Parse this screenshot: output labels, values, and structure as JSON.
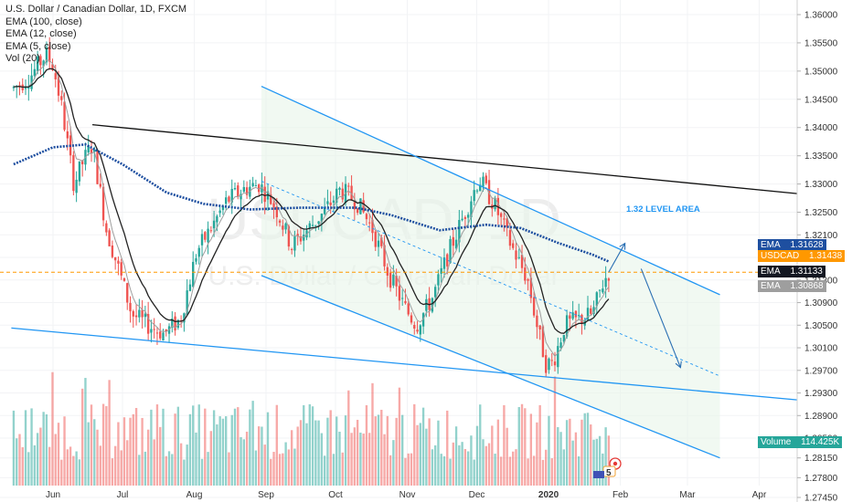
{
  "legend": {
    "symbol": "U.S. Dollar / Canadian Dollar, 1D, FXCM",
    "studies": [
      "EMA (100, close)",
      "EMA (12, close)",
      "EMA (5, close)",
      "Vol (20)"
    ]
  },
  "watermark": {
    "ticker": "USDCAD, 1D",
    "name": "U.S. Dollar / Canadian Dollar"
  },
  "annotation": "1.32 LEVEL AREA",
  "colors": {
    "up": "#26a69a",
    "down": "#ef5350",
    "ema100": "#1e4fa0",
    "ema12": "#222222",
    "ema5": "#9e9e9e",
    "channel": "#2196f3",
    "price_line": "#ff9800",
    "resistance": "#111111"
  },
  "badges": [
    {
      "label": "EMA",
      "value": "1.31628",
      "bg": "#1e4fa0",
      "fg": "#ffffff"
    },
    {
      "label": "USDCAD",
      "value": "1.31438",
      "bg": "#ff9800",
      "fg": "#ffffff"
    },
    {
      "label": "EMA",
      "value": "1.31133",
      "bg": "#131722",
      "fg": "#ffffff"
    },
    {
      "label": "EMA",
      "value": "1.30868",
      "bg": "#9e9e9e",
      "fg": "#ffffff"
    },
    {
      "label": "Volume",
      "value": "114.425K",
      "bg": "#26a69a",
      "fg": "#ffffff"
    }
  ],
  "event_marker": "5",
  "chart_data": {
    "type": "candlestick",
    "y_ticks": [
      "1.36000",
      "1.35500",
      "1.35000",
      "1.34500",
      "1.34000",
      "1.33500",
      "1.33000",
      "1.32500",
      "1.32100",
      "1.31700",
      "1.31300",
      "1.30900",
      "1.30500",
      "1.30100",
      "1.29700",
      "1.29300",
      "1.28900",
      "1.28500",
      "1.28150",
      "1.27800",
      "1.27450"
    ],
    "x_ticks": [
      "Jun",
      "Jul",
      "Aug",
      "Sep",
      "Oct",
      "Nov",
      "Dec",
      "2020",
      "Feb",
      "Mar",
      "Apr"
    ],
    "last_price": 1.31438,
    "ema_last": {
      "ema100": 1.31628,
      "ema12": 1.31133,
      "ema5": 1.30868
    },
    "volume_last": "114.425K",
    "price_path": [
      [
        "2019-05-15",
        1.347
      ],
      [
        "2019-05-22",
        1.349
      ],
      [
        "2019-05-29",
        1.353
      ],
      [
        "2019-06-01",
        1.351
      ],
      [
        "2019-06-05",
        1.343
      ],
      [
        "2019-06-10",
        1.33
      ],
      [
        "2019-06-14",
        1.334
      ],
      [
        "2019-06-18",
        1.337
      ],
      [
        "2019-06-24",
        1.322
      ],
      [
        "2019-06-30",
        1.314
      ],
      [
        "2019-07-05",
        1.307
      ],
      [
        "2019-07-12",
        1.305
      ],
      [
        "2019-07-19",
        1.3035
      ],
      [
        "2019-07-26",
        1.306
      ],
      [
        "2019-08-02",
        1.318
      ],
      [
        "2019-08-08",
        1.322
      ],
      [
        "2019-08-15",
        1.327
      ],
      [
        "2019-08-22",
        1.329
      ],
      [
        "2019-08-29",
        1.33
      ],
      [
        "2019-09-05",
        1.326
      ],
      [
        "2019-09-12",
        1.319
      ],
      [
        "2019-09-19",
        1.322
      ],
      [
        "2019-09-26",
        1.325
      ],
      [
        "2019-10-03",
        1.329
      ],
      [
        "2019-10-10",
        1.327
      ],
      [
        "2019-10-17",
        1.322
      ],
      [
        "2019-10-24",
        1.314
      ],
      [
        "2019-10-31",
        1.308
      ],
      [
        "2019-11-05",
        1.305
      ],
      [
        "2019-11-12",
        1.31
      ],
      [
        "2019-11-19",
        1.318
      ],
      [
        "2019-11-26",
        1.325
      ],
      [
        "2019-12-02",
        1.331
      ],
      [
        "2019-12-09",
        1.326
      ],
      [
        "2019-12-16",
        1.319
      ],
      [
        "2019-12-23",
        1.313
      ],
      [
        "2019-12-27",
        1.305
      ],
      [
        "2019-12-31",
        1.298
      ],
      [
        "2020-01-03",
        1.2985
      ],
      [
        "2020-01-08",
        1.305
      ],
      [
        "2020-01-14",
        1.306
      ],
      [
        "2020-01-20",
        1.307
      ],
      [
        "2020-01-24",
        1.312
      ],
      [
        "2020-01-27",
        1.3144
      ]
    ],
    "ema100_path": [
      [
        "2019-05-15",
        1.3335
      ],
      [
        "2019-06-01",
        1.3365
      ],
      [
        "2019-06-15",
        1.337
      ],
      [
        "2019-07-01",
        1.3335
      ],
      [
        "2019-07-20",
        1.3285
      ],
      [
        "2019-08-05",
        1.3265
      ],
      [
        "2019-08-25",
        1.3255
      ],
      [
        "2019-09-15",
        1.3258
      ],
      [
        "2019-10-10",
        1.3258
      ],
      [
        "2019-10-25",
        1.3245
      ],
      [
        "2019-11-15",
        1.3218
      ],
      [
        "2019-12-05",
        1.3228
      ],
      [
        "2019-12-20",
        1.3222
      ],
      [
        "2020-01-05",
        1.3196
      ],
      [
        "2020-01-20",
        1.3175
      ],
      [
        "2020-01-27",
        1.31628
      ]
    ],
    "lines": [
      {
        "name": "resistance",
        "from": [
          "2019-06-18",
          1.3405
        ],
        "to": [
          "2020-04-30",
          1.3278
        ]
      },
      {
        "name": "channel-top",
        "from": [
          "2019-08-30",
          1.3473
        ],
        "to": [
          "2020-03-15",
          1.3104
        ]
      },
      {
        "name": "channel-bottom",
        "from": [
          "2019-08-30",
          1.3138
        ],
        "to": [
          "2020-03-15",
          1.2815
        ]
      },
      {
        "name": "channel-mid",
        "from": [
          "2019-08-30",
          1.3305
        ],
        "to": [
          "2020-03-15",
          1.296
        ]
      },
      {
        "name": "support",
        "from": [
          "2019-05-14",
          1.3045
        ],
        "to": [
          "2020-04-30",
          1.2913
        ]
      }
    ],
    "forecast_path": [
      [
        "2020-01-27",
        1.3144
      ],
      [
        "2020-02-03",
        1.3195
      ],
      [
        "2020-02-10",
        1.315
      ],
      [
        "2020-02-27",
        1.2975
      ]
    ]
  }
}
